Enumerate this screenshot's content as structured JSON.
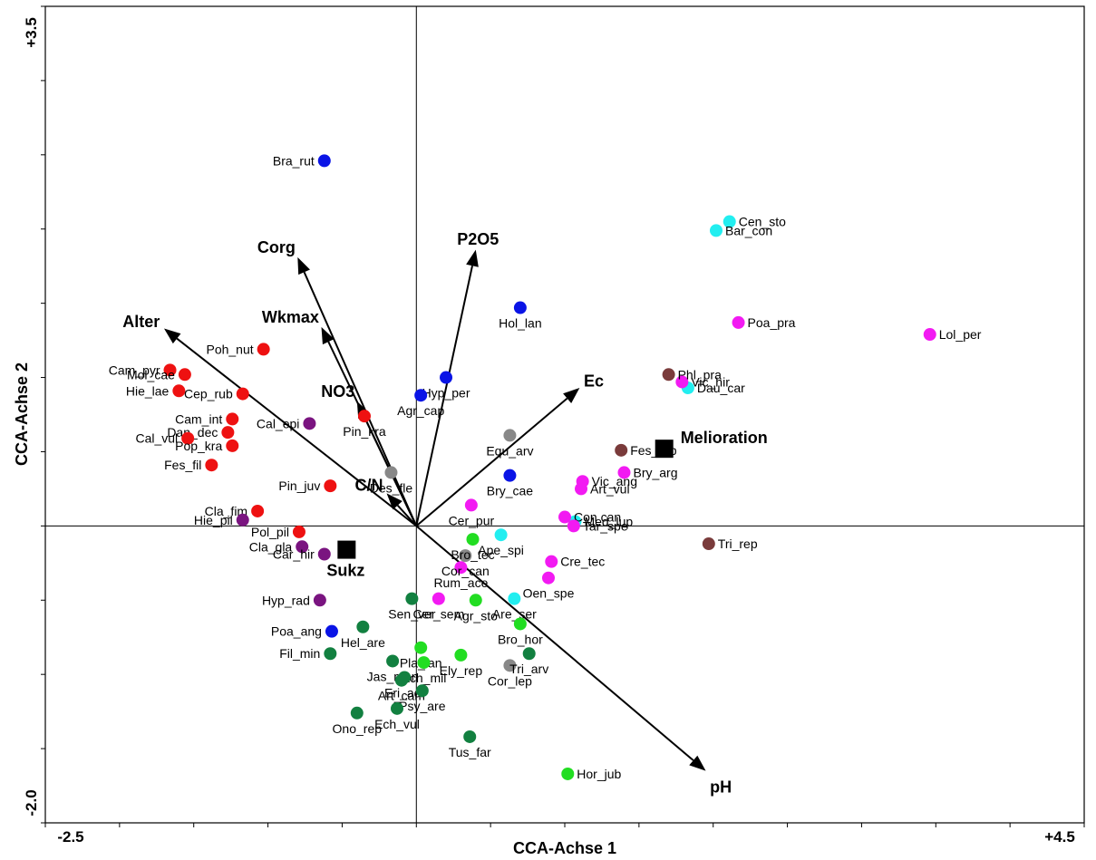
{
  "chart_data": {
    "type": "scatter",
    "xlabel": "CCA-Achse 1",
    "ylabel": "CCA-Achse 2",
    "xlim": [
      -2.5,
      4.5
    ],
    "ylim": [
      -2.0,
      3.5
    ],
    "x_tick_labels": [
      "-2.5",
      "+4.5"
    ],
    "y_tick_labels": [
      "-2.0",
      "+3.5"
    ],
    "grid": false,
    "species": [
      {
        "name": "Bra_rut",
        "x": -0.62,
        "y": 2.46,
        "color": "#0a14e6"
      },
      {
        "name": "Hol_lan",
        "x": 0.7,
        "y": 1.47,
        "color": "#0a14e6"
      },
      {
        "name": "Hyp_per",
        "x": 0.2,
        "y": 1.0,
        "color": "#0a14e6"
      },
      {
        "name": "Agr_cap",
        "x": 0.03,
        "y": 0.88,
        "color": "#0a14e6"
      },
      {
        "name": "Bry_cae",
        "x": 0.63,
        "y": 0.34,
        "color": "#0a14e6"
      },
      {
        "name": "Poa_ang",
        "x": -0.57,
        "y": -0.71,
        "color": "#0a14e6"
      },
      {
        "name": "Cen_sto",
        "x": 2.11,
        "y": 2.05,
        "color": "#22eef0"
      },
      {
        "name": "Bar_con",
        "x": 2.02,
        "y": 1.99,
        "color": "#22eef0"
      },
      {
        "name": "Dau_car",
        "x": 1.83,
        "y": 0.93,
        "color": "#22eef0"
      },
      {
        "name": "Med_lup",
        "x": 1.07,
        "y": 0.03,
        "color": "#22eef0"
      },
      {
        "name": "Ape_spi",
        "x": 0.57,
        "y": -0.06,
        "color": "#22eef0"
      },
      {
        "name": "Are_ser",
        "x": 0.66,
        "y": -0.49,
        "color": "#22eef0"
      },
      {
        "name": "Poa_pra",
        "x": 2.17,
        "y": 1.37,
        "color": "#f21af2"
      },
      {
        "name": "Lol_per",
        "x": 3.46,
        "y": 1.29,
        "color": "#f21af2"
      },
      {
        "name": "Vic_hir",
        "x": 1.79,
        "y": 0.97,
        "color": "#f21af2"
      },
      {
        "name": "Bry_arg",
        "x": 1.4,
        "y": 0.36,
        "color": "#f21af2"
      },
      {
        "name": "Vic_ang",
        "x": 1.12,
        "y": 0.3,
        "color": "#f21af2"
      },
      {
        "name": "Art_vul",
        "x": 1.11,
        "y": 0.25,
        "color": "#f21af2"
      },
      {
        "name": "Cer_pur",
        "x": 0.37,
        "y": 0.14,
        "color": "#f21af2"
      },
      {
        "name": "Con can",
        "x": 1.0,
        "y": 0.06,
        "color": "#f21af2"
      },
      {
        "name": "Tar_spe",
        "x": 1.06,
        "y": 0.0,
        "color": "#f21af2"
      },
      {
        "name": "Cre_tec",
        "x": 0.91,
        "y": -0.24,
        "color": "#f21af2"
      },
      {
        "name": "Oen_spe",
        "x": 0.89,
        "y": -0.35,
        "color": "#f21af2"
      },
      {
        "name": "Rum_ace",
        "x": 0.3,
        "y": -0.28,
        "color": "#f21af2"
      },
      {
        "name": "Cer_sem",
        "x": 0.15,
        "y": -0.49,
        "color": "#f21af2"
      },
      {
        "name": "Phl_pra",
        "x": 1.7,
        "y": 1.02,
        "color": "#7a3b3b"
      },
      {
        "name": "Fes_rub",
        "x": 1.38,
        "y": 0.51,
        "color": "#7a3b3b"
      },
      {
        "name": "Tri_rep",
        "x": 1.97,
        "y": -0.12,
        "color": "#7a3b3b"
      },
      {
        "name": "Equ_arv",
        "x": 0.63,
        "y": 0.61,
        "color": "#888888"
      },
      {
        "name": "Des_fle",
        "x": -0.17,
        "y": 0.36,
        "color": "#888888"
      },
      {
        "name": "Cor_can",
        "x": 0.33,
        "y": -0.2,
        "color": "#888888"
      },
      {
        "name": "Cor_lep",
        "x": 0.63,
        "y": -0.94,
        "color": "#888888"
      },
      {
        "name": "Poh_nut",
        "x": -1.03,
        "y": 1.19,
        "color": "#ee1111"
      },
      {
        "name": "Cam_pyr",
        "x": -1.66,
        "y": 1.05,
        "color": "#ee1111"
      },
      {
        "name": "Mol_cae",
        "x": -1.56,
        "y": 1.02,
        "color": "#ee1111"
      },
      {
        "name": "Hie_lae",
        "x": -1.6,
        "y": 0.91,
        "color": "#ee1111"
      },
      {
        "name": "Cep_rub",
        "x": -1.17,
        "y": 0.89,
        "color": "#ee1111"
      },
      {
        "name": "Pin_kra",
        "x": -0.35,
        "y": 0.74,
        "color": "#ee1111"
      },
      {
        "name": "Cam_int",
        "x": -1.24,
        "y": 0.72,
        "color": "#ee1111"
      },
      {
        "name": "Dan_dec",
        "x": -1.27,
        "y": 0.63,
        "color": "#ee1111"
      },
      {
        "name": "Cal_vul",
        "x": -1.54,
        "y": 0.59,
        "color": "#ee1111"
      },
      {
        "name": "Pop_kra",
        "x": -1.24,
        "y": 0.54,
        "color": "#ee1111"
      },
      {
        "name": "Fes_fil",
        "x": -1.38,
        "y": 0.41,
        "color": "#ee1111"
      },
      {
        "name": "Pin_juv",
        "x": -0.58,
        "y": 0.27,
        "color": "#ee1111"
      },
      {
        "name": "Cla_fim",
        "x": -1.07,
        "y": 0.1,
        "color": "#ee1111"
      },
      {
        "name": "Pol_pil",
        "x": -0.79,
        "y": -0.04,
        "color": "#ee1111"
      },
      {
        "name": "Cal_epi",
        "x": -0.72,
        "y": 0.69,
        "color": "#7a1480"
      },
      {
        "name": "Hie_pil",
        "x": -1.17,
        "y": 0.04,
        "color": "#7a1480"
      },
      {
        "name": "Cla_gla",
        "x": -0.77,
        "y": -0.14,
        "color": "#7a1480"
      },
      {
        "name": "Car_hir",
        "x": -0.62,
        "y": -0.19,
        "color": "#7a1480"
      },
      {
        "name": "Hyp_rad",
        "x": -0.65,
        "y": -0.5,
        "color": "#7a1480"
      },
      {
        "name": "Bro_tec",
        "x": 0.38,
        "y": -0.09,
        "color": "#22dd22"
      },
      {
        "name": "Agr_sto",
        "x": 0.4,
        "y": -0.5,
        "color": "#22dd22"
      },
      {
        "name": "Bro_hor",
        "x": 0.7,
        "y": -0.66,
        "color": "#22dd22"
      },
      {
        "name": "Pla_lan",
        "x": 0.03,
        "y": -0.82,
        "color": "#22dd22"
      },
      {
        "name": "Ely_rep",
        "x": 0.3,
        "y": -0.87,
        "color": "#22dd22"
      },
      {
        "name": "Ach_mil",
        "x": 0.05,
        "y": -0.92,
        "color": "#22dd22"
      },
      {
        "name": "Hor_jub",
        "x": 1.02,
        "y": -1.67,
        "color": "#22dd22"
      },
      {
        "name": "Sen_ver",
        "x": -0.03,
        "y": -0.49,
        "color": "#128040"
      },
      {
        "name": "Hel_are",
        "x": -0.36,
        "y": -0.68,
        "color": "#128040"
      },
      {
        "name": "Fil_min",
        "x": -0.58,
        "y": -0.86,
        "color": "#128040"
      },
      {
        "name": "Jas_mon",
        "x": -0.16,
        "y": -0.91,
        "color": "#128040"
      },
      {
        "name": "Tri_arv",
        "x": 0.76,
        "y": -0.86,
        "color": "#128040"
      },
      {
        "name": "Eri_acr",
        "x": -0.08,
        "y": -1.02,
        "color": "#128040"
      },
      {
        "name": "Art_cam",
        "x": -0.1,
        "y": -1.04,
        "color": "#128040"
      },
      {
        "name": "Psy_are",
        "x": 0.04,
        "y": -1.11,
        "color": "#128040"
      },
      {
        "name": "Ono_rep",
        "x": -0.4,
        "y": -1.26,
        "color": "#128040"
      },
      {
        "name": "Ech_vul",
        "x": -0.13,
        "y": -1.23,
        "color": "#128040"
      },
      {
        "name": "Tus_far",
        "x": 0.36,
        "y": -1.42,
        "color": "#128040"
      }
    ],
    "env_vectors": [
      {
        "name": "Corg",
        "x": -0.8,
        "y": 1.81
      },
      {
        "name": "P2O5",
        "x": 0.4,
        "y": 1.86
      },
      {
        "name": "Alter",
        "x": -1.7,
        "y": 1.33
      },
      {
        "name": "Wkmax",
        "x": -0.64,
        "y": 1.34
      },
      {
        "name": "NO3",
        "x": -0.4,
        "y": 0.84
      },
      {
        "name": "Ec",
        "x": 1.1,
        "y": 0.93
      },
      {
        "name": "C/N",
        "x": -0.2,
        "y": 0.22
      },
      {
        "name": "pH",
        "x": 1.95,
        "y": -1.65
      }
    ],
    "centroids": [
      {
        "name": "Melioration",
        "x": 1.67,
        "y": 0.52
      },
      {
        "name": "Sukz",
        "x": -0.47,
        "y": -0.16
      }
    ]
  }
}
